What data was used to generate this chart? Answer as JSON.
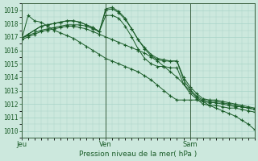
{
  "title": "Pression niveau de la mer( hPa )",
  "bg_color": "#cce8dd",
  "grid_color": "#a8d4c8",
  "line_color": "#1a5c28",
  "ylim": [
    1009.5,
    1019.5
  ],
  "yticks": [
    1010,
    1011,
    1012,
    1013,
    1014,
    1015,
    1016,
    1017,
    1018,
    1019
  ],
  "day_labels": [
    "Jeu",
    "Ven",
    "Sam"
  ],
  "day_positions": [
    0,
    13,
    26
  ],
  "n_points": 37,
  "series": [
    [
      1016.8,
      1018.6,
      1018.2,
      1018.1,
      1017.8,
      1017.5,
      1017.3,
      1017.1,
      1016.9,
      1016.6,
      1016.3,
      1016.0,
      1015.7,
      1015.4,
      1015.2,
      1015.0,
      1014.8,
      1014.6,
      1014.4,
      1014.1,
      1013.8,
      1013.4,
      1013.0,
      1012.6,
      1012.3,
      1012.3,
      1012.3,
      1012.3,
      1012.2,
      1012.1,
      1012.1,
      1012.0,
      1011.9,
      1011.8,
      1011.8,
      1011.7,
      1011.6
    ],
    [
      1016.9,
      1017.2,
      1017.5,
      1017.8,
      1017.9,
      1018.0,
      1018.1,
      1018.2,
      1018.2,
      1018.1,
      1017.9,
      1017.7,
      1017.4,
      1019.0,
      1019.1,
      1018.8,
      1018.3,
      1017.6,
      1016.8,
      1016.2,
      1015.7,
      1015.4,
      1015.3,
      1015.2,
      1015.2,
      1014.0,
      1013.3,
      1012.8,
      1012.4,
      1012.3,
      1012.3,
      1012.2,
      1012.1,
      1012.0,
      1011.9,
      1011.8,
      1011.7
    ],
    [
      1016.9,
      1017.2,
      1017.5,
      1017.8,
      1017.9,
      1018.0,
      1018.1,
      1018.2,
      1018.2,
      1018.1,
      1017.9,
      1017.7,
      1017.4,
      1019.1,
      1019.2,
      1018.9,
      1018.4,
      1017.6,
      1016.8,
      1016.1,
      1015.6,
      1015.3,
      1015.2,
      1015.2,
      1015.2,
      1013.8,
      1013.1,
      1012.6,
      1012.3,
      1012.2,
      1012.2,
      1012.1,
      1012.0,
      1011.9,
      1011.8,
      1011.7,
      1011.6
    ],
    [
      1016.9,
      1017.1,
      1017.3,
      1017.5,
      1017.6,
      1017.7,
      1017.8,
      1017.9,
      1017.9,
      1017.9,
      1017.8,
      1017.6,
      1017.4,
      1018.6,
      1018.6,
      1018.4,
      1017.8,
      1017.0,
      1016.1,
      1015.4,
      1015.0,
      1014.8,
      1014.8,
      1014.7,
      1014.7,
      1013.5,
      1012.8,
      1012.4,
      1012.0,
      1011.9,
      1011.9,
      1011.8,
      1011.7,
      1011.7,
      1011.6,
      1011.5,
      1011.4
    ],
    [
      1016.8,
      1017.0,
      1017.2,
      1017.4,
      1017.5,
      1017.6,
      1017.7,
      1017.8,
      1017.8,
      1017.7,
      1017.6,
      1017.4,
      1017.2,
      1017.0,
      1016.8,
      1016.6,
      1016.4,
      1016.2,
      1016.0,
      1015.8,
      1015.5,
      1015.2,
      1014.8,
      1014.4,
      1014.0,
      1013.5,
      1013.0,
      1012.5,
      1012.2,
      1011.9,
      1011.7,
      1011.5,
      1011.3,
      1011.1,
      1010.8,
      1010.5,
      1010.1
    ]
  ]
}
